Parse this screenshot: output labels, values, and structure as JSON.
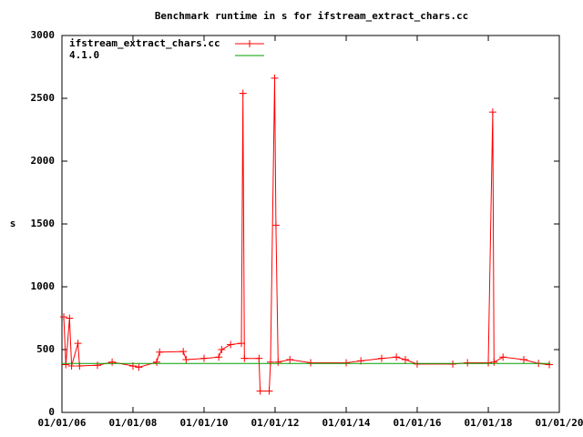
{
  "chart_data": {
    "type": "line",
    "title": "Benchmark runtime in s for ifstream_extract_chars.cc",
    "y_label": "s",
    "xlim": [
      "2006-01-01",
      "2020-01-01"
    ],
    "xticks": [
      {
        "value": "2006-01-01",
        "label": "01/01/06"
      },
      {
        "value": "2008-01-01",
        "label": "01/01/08"
      },
      {
        "value": "2010-01-01",
        "label": "01/01/10"
      },
      {
        "value": "2012-01-01",
        "label": "01/01/12"
      },
      {
        "value": "2014-01-01",
        "label": "01/01/14"
      },
      {
        "value": "2016-01-01",
        "label": "01/01/16"
      },
      {
        "value": "2018-01-01",
        "label": "01/01/18"
      },
      {
        "value": "2020-01-01",
        "label": "01/01/20"
      }
    ],
    "ylim": [
      0,
      3000
    ],
    "yticks": [
      0,
      500,
      1000,
      1500,
      2000,
      2500,
      3000
    ],
    "legend": "top-left",
    "series": [
      {
        "name": "ifstream_extract_chars.cc",
        "color": "#ff0000",
        "markers": true,
        "x": [
          "2006-01-20",
          "2006-02-10",
          "2006-03-20",
          "2006-04-10",
          "2006-06-15",
          "2006-07-01",
          "2007-01-01",
          "2007-06-01",
          "2008-01-01",
          "2008-03-01",
          "2008-09-01",
          "2008-10-01",
          "2009-06-01",
          "2009-07-01",
          "2010-01-01",
          "2010-06-01",
          "2010-07-01",
          "2010-10-01",
          "2011-01-20",
          "2011-02-05",
          "2011-02-20",
          "2011-07-20",
          "2011-08-01",
          "2011-11-01",
          "2011-11-15",
          "2011-12-28",
          "2012-01-10",
          "2012-02-01",
          "2012-06-01",
          "2013-01-01",
          "2014-01-01",
          "2014-06-01",
          "2015-01-01",
          "2015-06-01",
          "2015-09-01",
          "2016-01-01",
          "2017-01-01",
          "2017-06-01",
          "2018-01-01",
          "2018-02-15",
          "2018-03-01",
          "2018-06-01",
          "2019-01-01",
          "2019-06-01",
          "2019-09-20"
        ],
        "values": [
          760,
          380,
          750,
          370,
          550,
          370,
          375,
          400,
          370,
          360,
          400,
          480,
          485,
          420,
          430,
          440,
          500,
          540,
          550,
          2540,
          430,
          430,
          170,
          170,
          400,
          2660,
          1490,
          400,
          420,
          395,
          395,
          410,
          430,
          440,
          420,
          385,
          385,
          395,
          395,
          2390,
          400,
          440,
          420,
          390,
          380
        ]
      },
      {
        "name": "4.1.0",
        "color": "#00a000",
        "markers": false,
        "x": [
          "2006-01-01",
          "2019-10-01"
        ],
        "values": [
          390,
          390
        ]
      }
    ]
  }
}
